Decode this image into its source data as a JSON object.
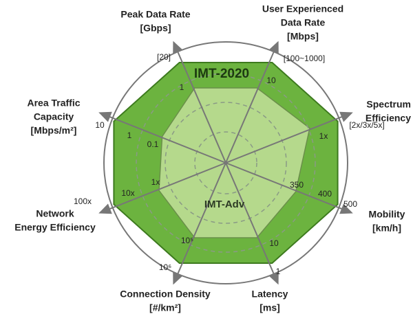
{
  "title": "IMT-2020",
  "baseline_label": "IMT-Adv",
  "axes": [
    {
      "name": [
        "Peak Data Rate",
        "[Gbps]"
      ],
      "scale": [
        "[20]",
        "1"
      ]
    },
    {
      "name": [
        "User Experienced",
        "Data Rate",
        "[Mbps]"
      ],
      "scale": [
        "[100~1000]",
        "10"
      ]
    },
    {
      "name": [
        "Spectrum",
        "Efficiency"
      ],
      "scale": [
        "[2x/3x/5x]",
        "1x"
      ]
    },
    {
      "name": [
        "Mobility",
        "[km/h]"
      ],
      "scale": [
        "500",
        "400",
        "350"
      ]
    },
    {
      "name": [
        "Latency",
        "[ms]"
      ],
      "scale": [
        "1",
        "10"
      ]
    },
    {
      "name": [
        "Connection Density",
        "[#/km²]"
      ],
      "scale": [
        "10⁶",
        "10⁵"
      ]
    },
    {
      "name": [
        "Network",
        "Energy Efficiency"
      ],
      "scale": [
        "100x",
        "10x",
        "1x"
      ]
    },
    {
      "name": [
        "Area Traffic",
        "Capacity",
        "[Mbps/m²]"
      ],
      "scale": [
        "10",
        "1",
        "0.1"
      ]
    }
  ]
}
